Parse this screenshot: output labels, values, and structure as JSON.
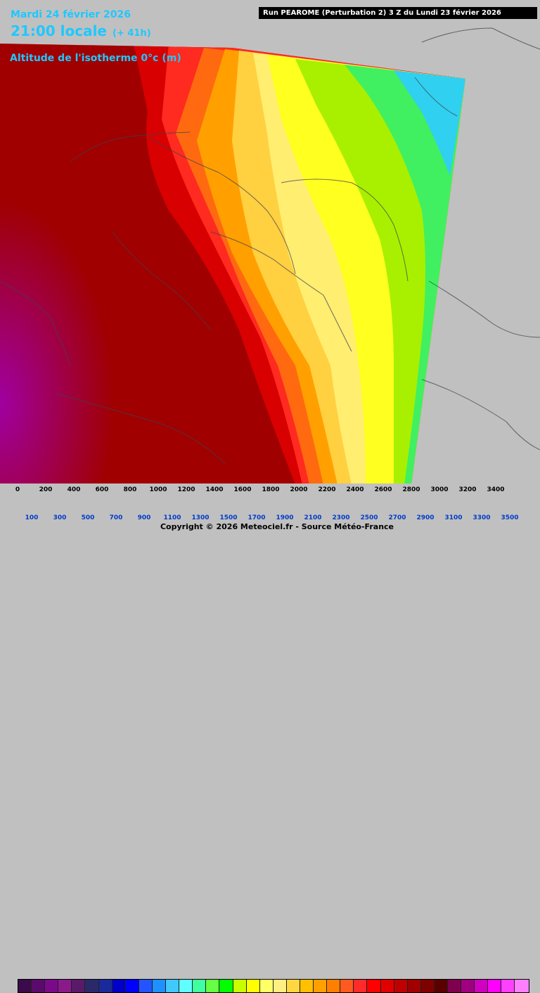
{
  "header": {
    "date": "Mardi 24 février 2026",
    "time": "21:00 locale",
    "lead": "(+ 41h)",
    "parameter": "Altitude de l'isotherme 0°c (m)",
    "run": "Run PEAROME (Perturbation 2) 3 Z du Lundi 23 février 2026"
  },
  "legend": {
    "upper_labels": [
      "0",
      "200",
      "400",
      "600",
      "800",
      "1000",
      "1200",
      "1400",
      "1600",
      "1800",
      "2000",
      "2200",
      "2400",
      "2600",
      "2800",
      "3000",
      "3200",
      "3400"
    ],
    "lower_labels": [
      "100",
      "300",
      "500",
      "700",
      "900",
      "1100",
      "1300",
      "1500",
      "1700",
      "1900",
      "2100",
      "2300",
      "2500",
      "2700",
      "2900",
      "3100",
      "3300",
      "3500"
    ],
    "colors": [
      "#3a0a4a",
      "#5a0a6a",
      "#7a0a8a",
      "#8a1a8a",
      "#5a1a6a",
      "#2a2a6a",
      "#1a2a9a",
      "#0000c8",
      "#0000ff",
      "#2255ff",
      "#1e90ff",
      "#40c8ff",
      "#60ffff",
      "#40ffa0",
      "#66ff44",
      "#00ff00",
      "#c8ff00",
      "#ffff00",
      "#ffff66",
      "#ffee80",
      "#ffd840",
      "#ffc000",
      "#ffa000",
      "#ff8000",
      "#ff5a20",
      "#ff2a2a",
      "#ff0000",
      "#e00000",
      "#c00000",
      "#a00000",
      "#800000",
      "#5a0000",
      "#800050",
      "#a00080",
      "#d000c0",
      "#ff00ff",
      "#ff40ff",
      "#ff80ff"
    ]
  },
  "copyright": "Copyright © 2026 Meteociel.fr - Source Météo-France"
}
